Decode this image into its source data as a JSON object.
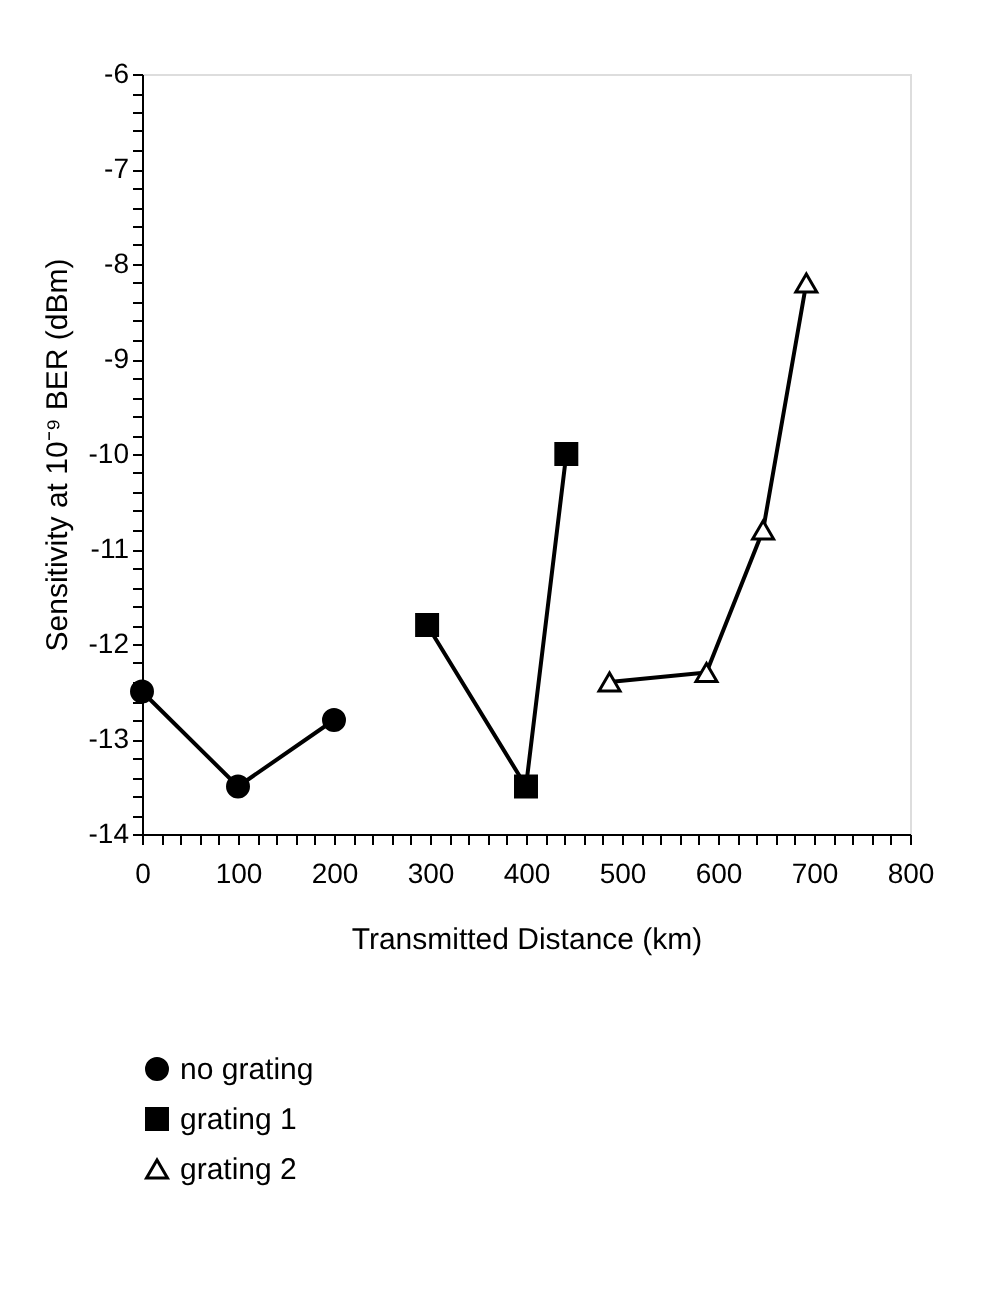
{
  "chart_data": {
    "type": "line",
    "xlabel": "Transmitted Distance (km)",
    "ylabel": "Sensitivity at 10⁻⁹ BER (dBm)",
    "xlim": [
      0,
      800
    ],
    "ylim": [
      -14,
      -6
    ],
    "xticks": [
      0,
      {
        "value": 20,
        "label": null
      },
      {
        "value": 40,
        "label": null
      },
      {
        "value": 60,
        "label": null
      },
      {
        "value": 80,
        "label": null
      },
      100,
      {
        "value": 120,
        "label": null
      },
      {
        "value": 140,
        "label": null
      },
      {
        "value": 160,
        "label": null
      },
      {
        "value": 180,
        "label": null
      },
      200,
      {
        "value": 220,
        "label": null
      },
      {
        "value": 240,
        "label": null
      },
      {
        "value": 260,
        "label": null
      },
      {
        "value": 280,
        "label": null
      },
      300,
      {
        "value": 320,
        "label": null
      },
      {
        "value": 340,
        "label": null
      },
      {
        "value": 360,
        "label": null
      },
      {
        "value": 380,
        "label": null
      },
      400,
      {
        "value": 420,
        "label": null
      },
      {
        "value": 440,
        "label": null
      },
      {
        "value": 460,
        "label": null
      },
      {
        "value": 480,
        "label": null
      },
      500,
      {
        "value": 520,
        "label": null
      },
      {
        "value": 540,
        "label": null
      },
      {
        "value": 560,
        "label": null
      },
      {
        "value": 580,
        "label": null
      },
      600,
      {
        "value": 620,
        "label": null
      },
      {
        "value": 640,
        "label": null
      },
      {
        "value": 660,
        "label": null
      },
      {
        "value": 680,
        "label": null
      },
      700,
      {
        "value": 720,
        "label": null
      },
      {
        "value": 740,
        "label": null
      },
      {
        "value": 760,
        "label": null
      },
      {
        "value": 780,
        "label": null
      },
      800
    ],
    "yticks": [
      -14,
      {
        "value": -13.8,
        "label": null
      },
      {
        "value": -13.6,
        "label": null
      },
      {
        "value": -13.4,
        "label": null
      },
      {
        "value": -13.2,
        "label": null
      },
      -13,
      {
        "value": -12.8,
        "label": null
      },
      {
        "value": -12.6,
        "label": null
      },
      {
        "value": -12.4,
        "label": null
      },
      {
        "value": -12.2,
        "label": null
      },
      -12,
      {
        "value": -11.8,
        "label": null
      },
      {
        "value": -11.6,
        "label": null
      },
      {
        "value": -11.4,
        "label": null
      },
      {
        "value": -11.2,
        "label": null
      },
      -11,
      {
        "value": -10.8,
        "label": null
      },
      {
        "value": -10.6,
        "label": null
      },
      {
        "value": -10.4,
        "label": null
      },
      {
        "value": -10.2,
        "label": null
      },
      -10,
      {
        "value": -9.8,
        "label": null
      },
      {
        "value": -9.6,
        "label": null
      },
      {
        "value": -9.4,
        "label": null
      },
      {
        "value": -9.2,
        "label": null
      },
      -9,
      {
        "value": -8.8,
        "label": null
      },
      {
        "value": -8.6,
        "label": null
      },
      {
        "value": -8.4,
        "label": null
      },
      {
        "value": -8.2,
        "label": null
      },
      -8,
      {
        "value": -7.8,
        "label": null
      },
      {
        "value": -7.6,
        "label": null
      },
      {
        "value": -7.4,
        "label": null
      },
      {
        "value": -7.2,
        "label": null
      },
      -7,
      {
        "value": -6.8,
        "label": null
      },
      {
        "value": -6.6,
        "label": null
      },
      {
        "value": -6.4,
        "label": null
      },
      {
        "value": -6.2,
        "label": null
      },
      -6
    ],
    "grid": false,
    "legend": "bottom",
    "line_style": "solid",
    "series": [
      {
        "name": "no grating",
        "color": "#000000",
        "marker": "circle",
        "x": [
          0,
          100,
          200
        ],
        "values": [
          -12.5,
          -13.5,
          -12.8
        ]
      },
      {
        "name": "grating 1",
        "color": "#000000",
        "marker": "square",
        "x": [
          297,
          400,
          442
        ],
        "values": [
          -11.8,
          -13.5,
          -10.0
        ]
      },
      {
        "name": "grating 2",
        "color": "#000000",
        "marker": "triangle",
        "x": [
          487,
          588,
          647,
          692
        ],
        "values": [
          -12.4,
          -12.3,
          -10.8,
          -8.2
        ]
      }
    ]
  }
}
